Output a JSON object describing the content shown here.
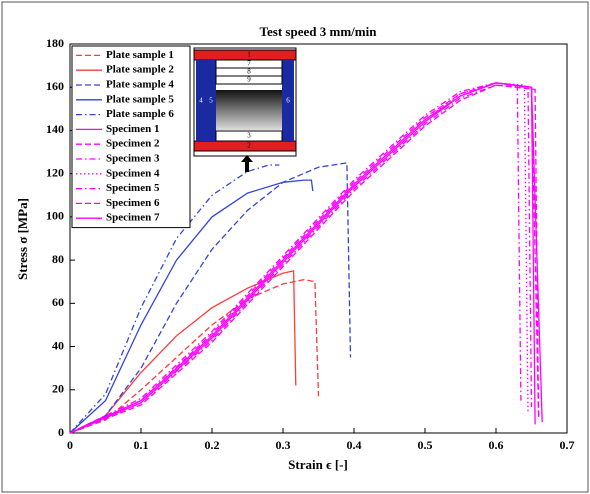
{
  "chart_data": {
    "type": "line",
    "title": "Test speed 3 mm/min",
    "x_label": "Strain ϵ [-]",
    "y_label": "Stress σ [MPa]",
    "xlim": [
      0,
      0.7
    ],
    "ylim": [
      0,
      180
    ],
    "xticks": [
      0,
      0.1,
      0.2,
      0.3,
      0.4,
      0.5,
      0.6,
      0.7
    ],
    "yticks": [
      0,
      20,
      40,
      60,
      80,
      100,
      120,
      140,
      160,
      180
    ],
    "grid": false,
    "legend": "upper-left",
    "inset_labels": [
      "1",
      "7",
      "8",
      "9",
      "4",
      "5",
      "6",
      "3",
      "2"
    ],
    "series": [
      {
        "name": "Plate sample 1",
        "color": "#ff3b3b",
        "linestyle": "dashed",
        "x": [
          0,
          0.05,
          0.1,
          0.15,
          0.2,
          0.25,
          0.3,
          0.33,
          0.345,
          0.35
        ],
        "values": [
          0,
          6,
          20,
          35,
          50,
          62,
          69,
          71,
          70,
          17
        ]
      },
      {
        "name": "Plate sample 2",
        "color": "#ff3b3b",
        "linestyle": "solid",
        "x": [
          0,
          0.05,
          0.1,
          0.15,
          0.2,
          0.25,
          0.3,
          0.315,
          0.318
        ],
        "values": [
          0,
          8,
          28,
          45,
          58,
          67,
          74,
          75,
          22
        ]
      },
      {
        "name": "Plate sample 4",
        "color": "#3344dd",
        "linestyle": "dashed",
        "x": [
          0,
          0.05,
          0.1,
          0.15,
          0.2,
          0.25,
          0.3,
          0.35,
          0.39,
          0.395
        ],
        "values": [
          0,
          8,
          30,
          60,
          85,
          103,
          116,
          123,
          125,
          35
        ]
      },
      {
        "name": "Plate sample 5",
        "color": "#3344dd",
        "linestyle": "solid",
        "x": [
          0,
          0.05,
          0.1,
          0.15,
          0.2,
          0.25,
          0.3,
          0.33,
          0.34,
          0.342
        ],
        "values": [
          0,
          15,
          50,
          80,
          100,
          111,
          116,
          117,
          117,
          112
        ]
      },
      {
        "name": "Plate sample 6",
        "color": "#3344dd",
        "linestyle": "dashdot",
        "x": [
          0,
          0.05,
          0.1,
          0.15,
          0.2,
          0.25,
          0.28,
          0.295
        ],
        "values": [
          0,
          18,
          58,
          90,
          110,
          121,
          124,
          124
        ]
      },
      {
        "name": "Specimen 1",
        "color": "#ff00ff",
        "linestyle": "solid",
        "x": [
          0,
          0.1,
          0.2,
          0.3,
          0.4,
          0.5,
          0.55,
          0.6,
          0.65,
          0.665
        ],
        "values": [
          0,
          14,
          44,
          79,
          114,
          144,
          156,
          162,
          160,
          5
        ]
      },
      {
        "name": "Specimen 2",
        "color": "#ff00ff",
        "linestyle": "dashed",
        "x": [
          0,
          0.1,
          0.2,
          0.3,
          0.4,
          0.5,
          0.55,
          0.6,
          0.65,
          0.66
        ],
        "values": [
          0,
          15,
          46,
          81,
          116,
          146,
          157,
          162,
          160,
          8
        ]
      },
      {
        "name": "Specimen 3",
        "color": "#ff00ff",
        "linestyle": "dashdot",
        "x": [
          0,
          0.1,
          0.2,
          0.3,
          0.4,
          0.5,
          0.55,
          0.6,
          0.63,
          0.635
        ],
        "values": [
          0,
          16,
          47,
          82,
          117,
          147,
          158,
          162,
          161,
          15
        ]
      },
      {
        "name": "Specimen 4",
        "color": "#ff00ff",
        "linestyle": "dotted",
        "x": [
          0,
          0.1,
          0.2,
          0.3,
          0.4,
          0.5,
          0.55,
          0.6,
          0.64,
          0.645
        ],
        "values": [
          0,
          15,
          45,
          80,
          115,
          145,
          157,
          162,
          161,
          10
        ]
      },
      {
        "name": "Specimen 5",
        "color": "#ff00ff",
        "linestyle": "dashdot",
        "x": [
          0,
          0.1,
          0.2,
          0.3,
          0.4,
          0.5,
          0.55,
          0.6,
          0.645,
          0.65
        ],
        "values": [
          0,
          14,
          43,
          78,
          113,
          143,
          155,
          161,
          160,
          12
        ]
      },
      {
        "name": "Specimen 6",
        "color": "#ff00ff",
        "linestyle": "dashed",
        "x": [
          0,
          0.1,
          0.2,
          0.3,
          0.4,
          0.5,
          0.55,
          0.6,
          0.655,
          0.66
        ],
        "values": [
          0,
          13,
          42,
          77,
          112,
          142,
          154,
          161,
          159,
          6
        ]
      },
      {
        "name": "Specimen 7",
        "color": "#ff00ff",
        "linestyle": "solid",
        "x": [
          0,
          0.1,
          0.2,
          0.3,
          0.4,
          0.5,
          0.55,
          0.6,
          0.65,
          0.655
        ],
        "values": [
          0,
          15,
          45,
          80,
          115,
          145,
          156,
          162,
          160,
          4
        ]
      }
    ]
  }
}
